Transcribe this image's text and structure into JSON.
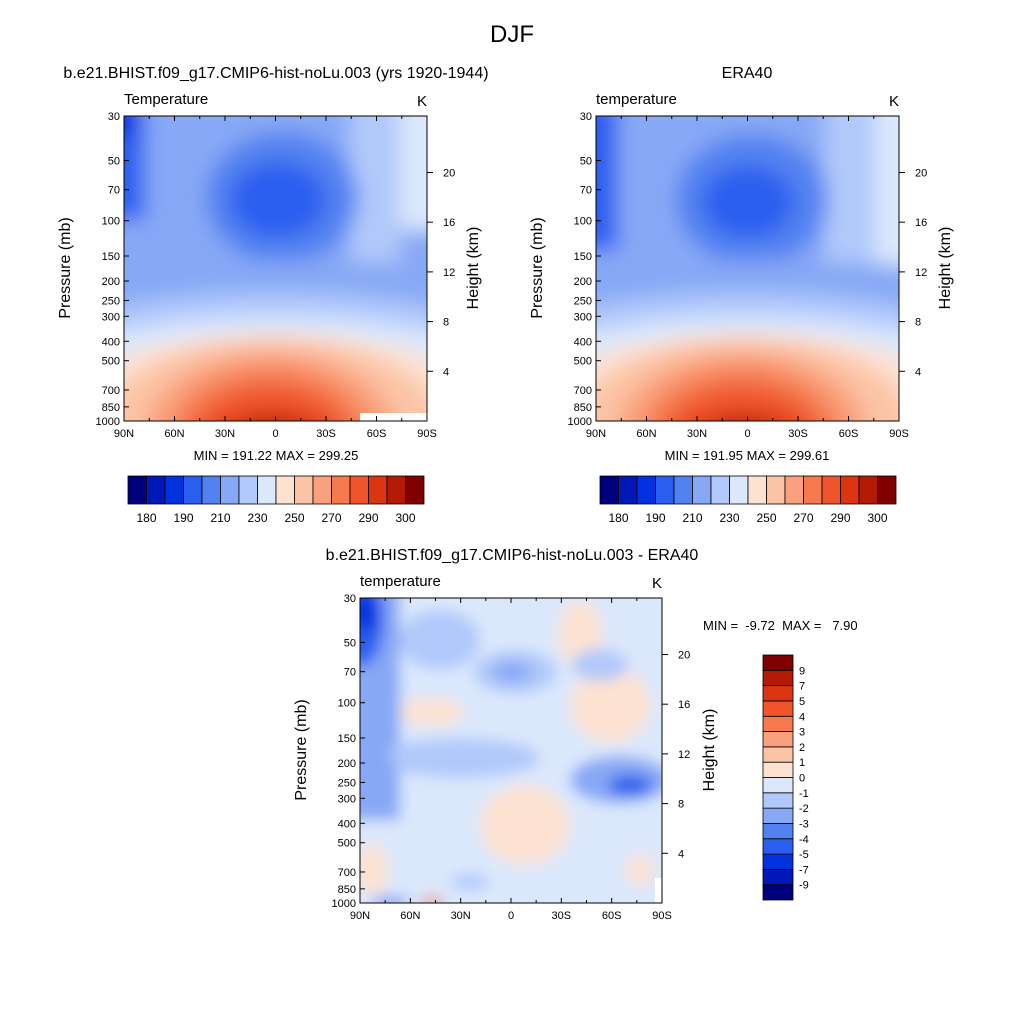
{
  "figure": {
    "title": "DJF"
  },
  "colors": {
    "abs_levels": [
      "#00007f",
      "#0018b8",
      "#0033dd",
      "#2a5eef",
      "#5282f0",
      "#87a8f5",
      "#b1c9fa",
      "#dbe8fc",
      "#fde2d2",
      "#fcc4a6",
      "#f9a07c",
      "#f57a4f",
      "#ef542a",
      "#db3511",
      "#b21a06",
      "#800000"
    ],
    "diff_levels": [
      "#00007f",
      "#0018b8",
      "#0033dd",
      "#2a5eef",
      "#5282f0",
      "#87a8f5",
      "#b1c9fa",
      "#dbe8fc",
      "#fde2d2",
      "#fcc4a6",
      "#f9a07c",
      "#f57a4f",
      "#ef542a",
      "#db3511",
      "#b21a06",
      "#800000"
    ]
  },
  "chart_data": [
    {
      "type": "heatmap",
      "title": "b.e21.BHIST.f09_g17.CMIP6-hist-noLu.003 (yrs 1920-1944)",
      "variable": "Temperature",
      "units": "K",
      "ylabel": "Pressure (mb)",
      "ylabel_right": "Height (km)",
      "x_ticks": [
        "90N",
        "60N",
        "30N",
        "0",
        "30S",
        "60S",
        "90S"
      ],
      "x_values": [
        90,
        60,
        30,
        0,
        -30,
        -60,
        -90
      ],
      "y_ticks": [
        "30",
        "50",
        "70",
        "100",
        "150",
        "200",
        "250",
        "300",
        "400",
        "500",
        "700",
        "850",
        "1000"
      ],
      "y_values": [
        30,
        50,
        70,
        100,
        150,
        200,
        250,
        300,
        400,
        500,
        700,
        850,
        1000
      ],
      "height_ticks": [
        "20",
        "16",
        "12",
        "8",
        "4"
      ],
      "ylim": [
        1000,
        30
      ],
      "xlim": [
        90,
        -90
      ],
      "log_pressure_axis": true,
      "min_max_label": "MIN = 191.22  MAX = 299.25",
      "min": 191.22,
      "max": 299.25,
      "colorbar": {
        "orientation": "horizontal",
        "labels": [
          "180",
          "190",
          "210",
          "230",
          "250",
          "270",
          "290",
          "300"
        ],
        "boxes": 16
      }
    },
    {
      "type": "heatmap",
      "title": "ERA40",
      "variable": "temperature",
      "units": "K",
      "ylabel": "Pressure (mb)",
      "ylabel_right": "Height (km)",
      "x_ticks": [
        "90N",
        "60N",
        "30N",
        "0",
        "30S",
        "60S",
        "90S"
      ],
      "x_values": [
        90,
        60,
        30,
        0,
        -30,
        -60,
        -90
      ],
      "y_ticks": [
        "30",
        "50",
        "70",
        "100",
        "150",
        "200",
        "250",
        "300",
        "400",
        "500",
        "700",
        "850",
        "1000"
      ],
      "y_values": [
        30,
        50,
        70,
        100,
        150,
        200,
        250,
        300,
        400,
        500,
        700,
        850,
        1000
      ],
      "height_ticks": [
        "20",
        "16",
        "12",
        "8",
        "4"
      ],
      "ylim": [
        1000,
        30
      ],
      "xlim": [
        90,
        -90
      ],
      "log_pressure_axis": true,
      "min_max_label": "MIN = 191.95  MAX = 299.61",
      "min": 191.95,
      "max": 299.61,
      "colorbar": {
        "orientation": "horizontal",
        "labels": [
          "180",
          "190",
          "210",
          "230",
          "250",
          "270",
          "290",
          "300"
        ],
        "boxes": 16
      }
    },
    {
      "type": "heatmap",
      "title": "b.e21.BHIST.f09_g17.CMIP6-hist-noLu.003 - ERA40",
      "variable": "temperature",
      "units": "K",
      "ylabel": "Pressure (mb)",
      "ylabel_right": "Height (km)",
      "x_ticks": [
        "90N",
        "60N",
        "30N",
        "0",
        "30S",
        "60S",
        "90S"
      ],
      "x_values": [
        90,
        60,
        30,
        0,
        -30,
        -60,
        -90
      ],
      "y_ticks": [
        "30",
        "50",
        "70",
        "100",
        "150",
        "200",
        "250",
        "300",
        "400",
        "500",
        "700",
        "850",
        "1000"
      ],
      "y_values": [
        30,
        50,
        70,
        100,
        150,
        200,
        250,
        300,
        400,
        500,
        700,
        850,
        1000
      ],
      "height_ticks": [
        "20",
        "16",
        "12",
        "8",
        "4"
      ],
      "ylim": [
        1000,
        30
      ],
      "xlim": [
        90,
        -90
      ],
      "log_pressure_axis": true,
      "min_max_label": "MIN =  -9.72  MAX =   7.90",
      "min": -9.72,
      "max": 7.9,
      "colorbar": {
        "orientation": "vertical",
        "labels": [
          "9",
          "7",
          "5",
          "4",
          "3",
          "2",
          "1",
          "0",
          "-1",
          "-2",
          "-3",
          "-4",
          "-5",
          "-7",
          "-9"
        ],
        "boxes": 16
      }
    }
  ]
}
